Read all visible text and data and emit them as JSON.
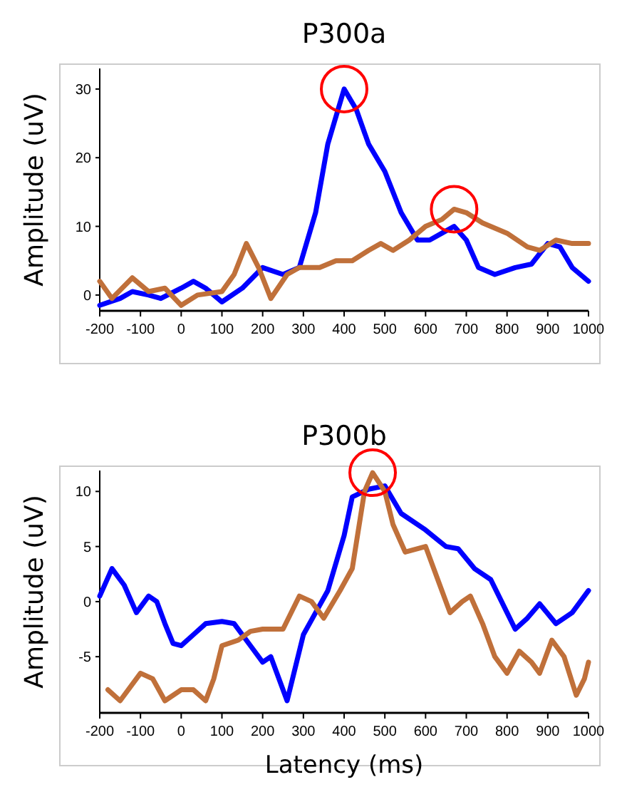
{
  "chart_data": [
    {
      "type": "line",
      "title": "P300a",
      "ylabel": "Amplitude (uV)",
      "xlim": [
        -200,
        1000
      ],
      "ylim": [
        -2.3,
        33
      ],
      "xticks": [
        -200,
        -100,
        0,
        100,
        200,
        300,
        400,
        500,
        600,
        700,
        800,
        900,
        1000
      ],
      "yticks": [
        0,
        10,
        20,
        30
      ],
      "grid": false,
      "line_style": "solid",
      "series": [
        {
          "color": "#0000ff",
          "x": [
            -200,
            -150,
            -120,
            -80,
            -50,
            0,
            30,
            60,
            100,
            150,
            200,
            250,
            290,
            330,
            360,
            400,
            430,
            460,
            500,
            540,
            580,
            610,
            640,
            670,
            700,
            730,
            770,
            820,
            860,
            900,
            930,
            960,
            1000
          ],
          "values": [
            -1.5,
            -0.5,
            0.5,
            0,
            -0.5,
            1,
            2,
            1,
            -1,
            1,
            4,
            3,
            4,
            12,
            22,
            30,
            27,
            22,
            18,
            12,
            8,
            8,
            9,
            10,
            8,
            4,
            3,
            4,
            4.5,
            7.5,
            7,
            4,
            2
          ]
        },
        {
          "color": "#c0703a",
          "x": [
            -200,
            -170,
            -120,
            -80,
            -40,
            0,
            40,
            100,
            130,
            160,
            190,
            220,
            260,
            290,
            340,
            380,
            420,
            460,
            490,
            520,
            560,
            600,
            640,
            670,
            700,
            740,
            800,
            850,
            880,
            920,
            960,
            1000
          ],
          "values": [
            2,
            -0.5,
            2.5,
            0.5,
            1,
            -1.5,
            0,
            0.5,
            3,
            7.5,
            4,
            -0.5,
            3,
            4,
            4,
            5,
            5,
            6.5,
            7.5,
            6.5,
            8,
            10,
            11,
            12.5,
            12,
            10.5,
            9,
            7,
            6.5,
            8,
            7.5,
            7.5
          ]
        }
      ]
    },
    {
      "type": "line",
      "title": "P300b",
      "ylabel": "Amplitude (uV)",
      "xlabel": "Latency (ms)",
      "xlim": [
        -200,
        1000
      ],
      "ylim": [
        -10.1,
        11.9
      ],
      "xticks": [
        -200,
        -100,
        0,
        100,
        200,
        300,
        400,
        500,
        600,
        700,
        800,
        900,
        1000
      ],
      "yticks": [
        -5,
        0,
        5,
        10
      ],
      "grid": false,
      "line_style": "solid",
      "series": [
        {
          "color": "#0000ff",
          "x": [
            -200,
            -170,
            -140,
            -110,
            -80,
            -60,
            -40,
            -20,
            0,
            30,
            60,
            100,
            130,
            170,
            200,
            220,
            260,
            280,
            300,
            330,
            360,
            400,
            420,
            460,
            500,
            540,
            600,
            650,
            680,
            720,
            760,
            800,
            820,
            850,
            880,
            920,
            960,
            1000
          ],
          "values": [
            0.5,
            3,
            1.5,
            -1,
            0.5,
            0,
            -2,
            -3.8,
            -4,
            -3,
            -2,
            -1.8,
            -2,
            -4,
            -5.5,
            -5,
            -9,
            -6,
            -3,
            -1,
            1,
            6,
            9.5,
            10.2,
            10.5,
            8,
            6.5,
            5,
            4.8,
            3,
            2,
            -1,
            -2.5,
            -1.5,
            -0.2,
            -2,
            -1,
            1
          ]
        },
        {
          "color": "#c0703a",
          "x": [
            -180,
            -150,
            -100,
            -70,
            -40,
            0,
            30,
            60,
            80,
            100,
            140,
            170,
            200,
            250,
            290,
            320,
            350,
            390,
            420,
            450,
            470,
            500,
            520,
            550,
            600,
            640,
            660,
            690,
            710,
            740,
            770,
            800,
            830,
            860,
            880,
            910,
            940,
            970,
            990,
            1000
          ],
          "values": [
            -8,
            -9,
            -6.5,
            -7,
            -9,
            -8,
            -8,
            -9,
            -7,
            -4,
            -3.5,
            -2.7,
            -2.5,
            -2.5,
            0.5,
            0,
            -1.5,
            1,
            3,
            10,
            11.7,
            10,
            7,
            4.5,
            5,
            1,
            -1,
            0,
            0.5,
            -2,
            -5,
            -6.5,
            -4.5,
            -5.5,
            -6.5,
            -3.5,
            -5,
            -8.5,
            -7,
            -5.5
          ]
        }
      ]
    }
  ]
}
